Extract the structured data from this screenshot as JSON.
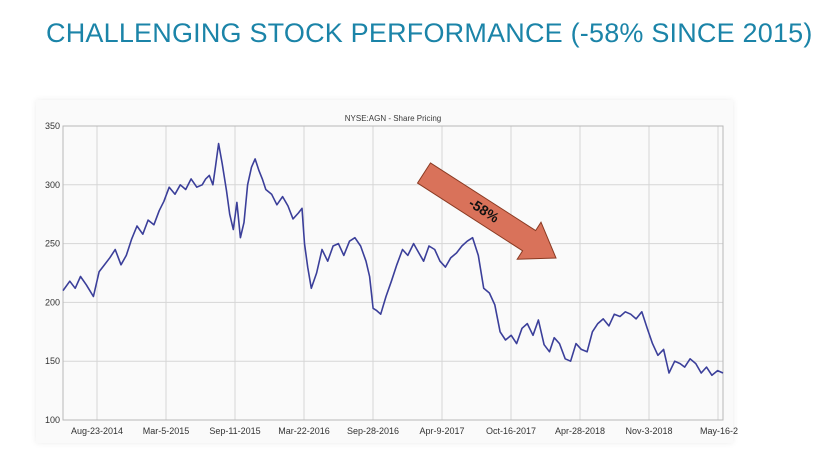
{
  "slide": {
    "title": "CHALLENGING STOCK PERFORMANCE (-58% SINCE 2015)"
  },
  "chart_data": {
    "type": "line",
    "title": "NYSE:AGN - Share Pricing",
    "xlabel": "",
    "ylabel": "",
    "ylim": [
      100,
      350
    ],
    "yticks": [
      100,
      150,
      200,
      250,
      300,
      350
    ],
    "xticks": [
      "Aug-23-2014",
      "Mar-5-2015",
      "Sep-11-2015",
      "Mar-22-2016",
      "Sep-28-2016",
      "Apr-9-2017",
      "Oct-16-2017",
      "Apr-28-2018",
      "Nov-3-2018",
      "May-16-2"
    ],
    "grid": true,
    "line_color": "#3b3f9a",
    "series": [
      {
        "name": "",
        "x": [
          "2014-06-01",
          "2014-06-20",
          "2014-07-05",
          "2014-07-20",
          "2014-08-05",
          "2014-08-15",
          "2014-08-25",
          "2014-09-10",
          "2014-09-25",
          "2014-10-10",
          "2014-10-25",
          "2014-11-10",
          "2014-11-25",
          "2014-12-10",
          "2014-12-25",
          "2015-01-10",
          "2015-01-25",
          "2015-02-10",
          "2015-02-25",
          "2015-03-10",
          "2015-03-25",
          "2015-04-10",
          "2015-04-25",
          "2015-05-10",
          "2015-05-25",
          "2015-06-10",
          "2015-06-25",
          "2015-07-05",
          "2015-07-15",
          "2015-07-25",
          "2015-08-01",
          "2015-08-10",
          "2015-08-20",
          "2015-09-01",
          "2015-09-10",
          "2015-09-20",
          "2015-09-30",
          "2015-10-10",
          "2015-10-20",
          "2015-10-30",
          "2015-11-10",
          "2015-11-20",
          "2015-12-01",
          "2015-12-10",
          "2015-12-20",
          "2016-01-05",
          "2016-01-20",
          "2016-02-05",
          "2016-02-20",
          "2016-03-05",
          "2016-03-20",
          "2016-03-30",
          "2016-04-06",
          "2016-04-15",
          "2016-04-25",
          "2016-05-10",
          "2016-05-25",
          "2016-06-10",
          "2016-06-25",
          "2016-07-10",
          "2016-07-25",
          "2016-08-10",
          "2016-08-25",
          "2016-09-10",
          "2016-09-25",
          "2016-10-05",
          "2016-10-15",
          "2016-10-25",
          "2016-11-05",
          "2016-11-20",
          "2016-12-05",
          "2016-12-20",
          "2017-01-05",
          "2017-01-20",
          "2017-02-05",
          "2017-02-20",
          "2017-03-05",
          "2017-03-20",
          "2017-04-05",
          "2017-04-20",
          "2017-05-05",
          "2017-05-20",
          "2017-06-05",
          "2017-06-20",
          "2017-07-05",
          "2017-07-20",
          "2017-08-05",
          "2017-08-20",
          "2017-09-05",
          "2017-09-20",
          "2017-10-05",
          "2017-10-20",
          "2017-11-05",
          "2017-11-20",
          "2017-12-05",
          "2017-12-20",
          "2018-01-05",
          "2018-01-20",
          "2018-02-05",
          "2018-02-20",
          "2018-03-05",
          "2018-03-20",
          "2018-04-05",
          "2018-04-20",
          "2018-05-05",
          "2018-05-20",
          "2018-06-05",
          "2018-06-20",
          "2018-07-05",
          "2018-07-20",
          "2018-08-05",
          "2018-08-20",
          "2018-09-05",
          "2018-09-20",
          "2018-10-05",
          "2018-10-20",
          "2018-11-05",
          "2018-11-20",
          "2018-12-05",
          "2018-12-20",
          "2019-01-05",
          "2019-01-20",
          "2019-02-05",
          "2019-02-20",
          "2019-03-05",
          "2019-03-20",
          "2019-04-05",
          "2019-04-20",
          "2019-05-05",
          "2019-05-20",
          "2019-06-05",
          "2019-06-20"
        ],
        "y": [
          210,
          218,
          212,
          222,
          215,
          210,
          205,
          226,
          232,
          238,
          245,
          232,
          240,
          254,
          265,
          258,
          270,
          266,
          278,
          286,
          298,
          292,
          300,
          296,
          305,
          298,
          300,
          305,
          308,
          300,
          315,
          335,
          318,
          295,
          275,
          262,
          285,
          255,
          268,
          300,
          315,
          322,
          312,
          305,
          296,
          292,
          283,
          290,
          282,
          271,
          276,
          280,
          250,
          230,
          212,
          225,
          245,
          235,
          248,
          250,
          240,
          252,
          255,
          248,
          235,
          222,
          195,
          193,
          190,
          205,
          218,
          232,
          245,
          240,
          250,
          242,
          235,
          248,
          245,
          235,
          230,
          238,
          242,
          248,
          252,
          255,
          240,
          212,
          208,
          198,
          175,
          168,
          172,
          165,
          178,
          182,
          172,
          185,
          164,
          158,
          170,
          165,
          152,
          150,
          165,
          160,
          158,
          175,
          182,
          186,
          180,
          190,
          188,
          192,
          190,
          186,
          192,
          178,
          165,
          155,
          160,
          140,
          150,
          148,
          145,
          152,
          148,
          140,
          145,
          138,
          142,
          140
        ]
      }
    ],
    "annotation": {
      "text": "-58%",
      "color": "#d9725a"
    }
  }
}
